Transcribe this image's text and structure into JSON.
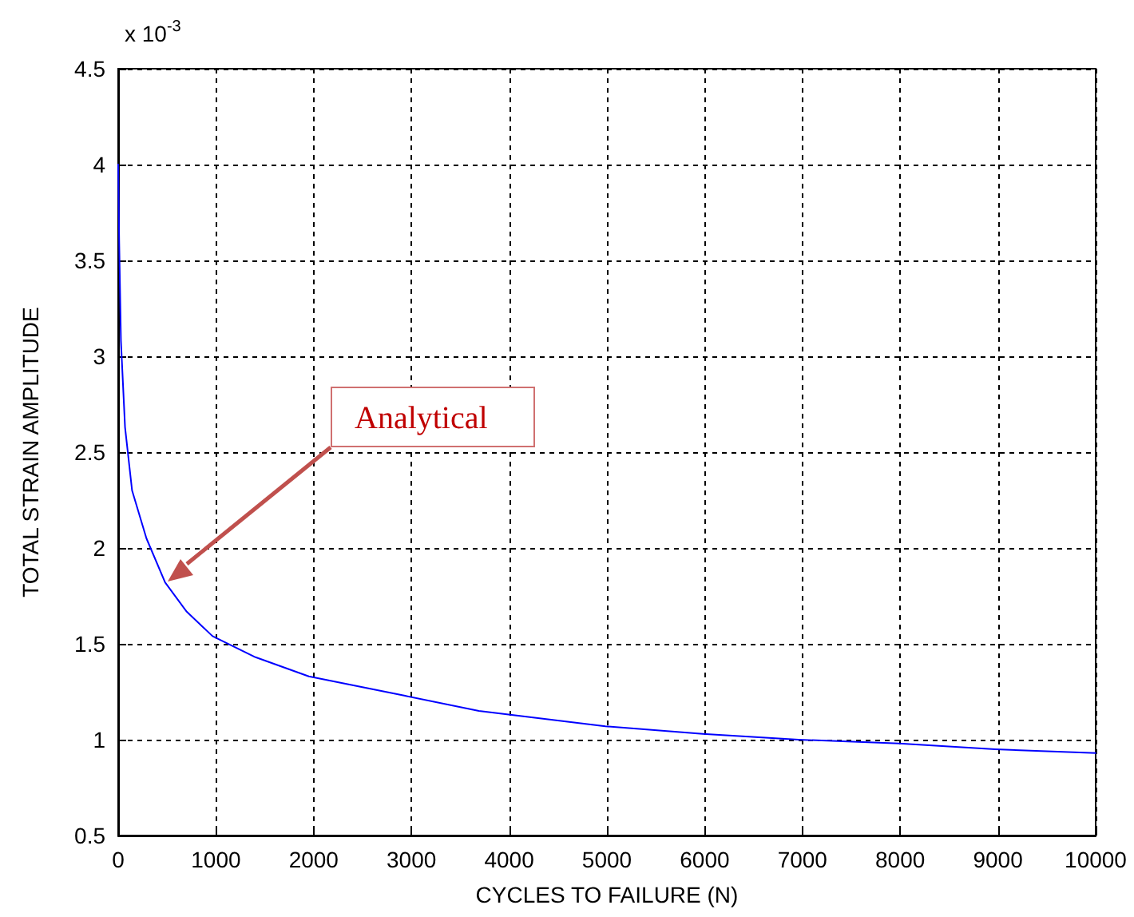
{
  "chart_data": {
    "type": "line",
    "xlabel": "CYCLES TO FAILURE (N)",
    "ylabel": "TOTAL STRAIN AMPLITUDE",
    "x": [
      0,
      10,
      28,
      70,
      142,
      289,
      480,
      697,
      965,
      1405,
      1950,
      2925,
      3690,
      4984,
      5980,
      6961,
      7990,
      8970,
      10000
    ],
    "series": [
      {
        "color": "#0000ff",
        "values": [
          4.0,
          3.6,
          3.08,
          2.63,
          2.3,
          2.05,
          1.82,
          1.67,
          1.54,
          1.43,
          1.33,
          1.23,
          1.15,
          1.07,
          1.03,
          1.0,
          0.98,
          0.95,
          0.93
        ]
      }
    ],
    "xlim": [
      0,
      10000
    ],
    "xticks": [
      0,
      1000,
      2000,
      3000,
      4000,
      5000,
      6000,
      7000,
      8000,
      9000,
      10000
    ],
    "ylim": [
      0.5,
      4.5
    ],
    "yticks": [
      0.5,
      1,
      1.5,
      2,
      2.5,
      3,
      3.5,
      4,
      4.5
    ],
    "grid": true,
    "marker": "none",
    "line_style": "solid",
    "annotations": [
      "x 10$^{-3}$",
      "Analytical"
    ]
  }
}
